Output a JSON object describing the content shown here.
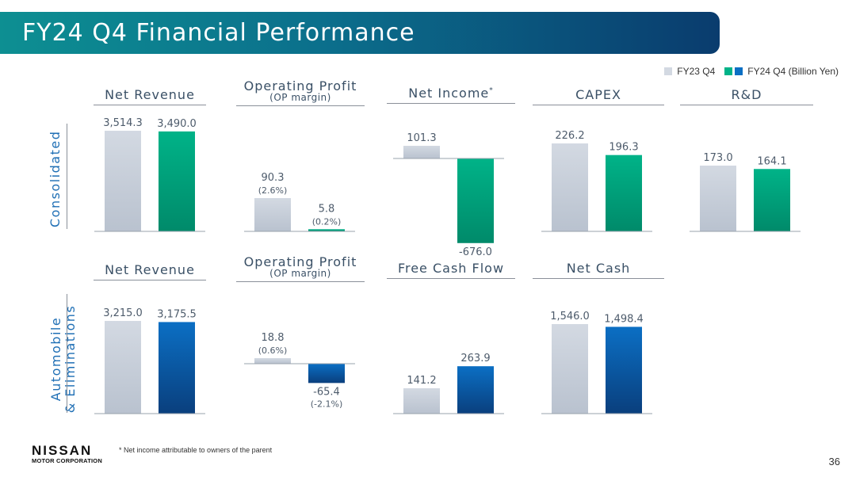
{
  "title": "FY24 Q4 Financial Performance",
  "legend": {
    "fy23_label": "FY23 Q4",
    "fy24_label": "FY24 Q4 (Billion Yen)"
  },
  "colors": {
    "fy23": "#d3d9e2",
    "fy23_bottom": "#b9c2cf",
    "fy24_consolidated": "#00b388",
    "fy24_consolidated_bottom": "#008a6a",
    "fy24_automobile": "#0b6fc4",
    "fy24_automobile_bottom": "#0a3f7d",
    "value_label": "#4d5b6b"
  },
  "row_labels": {
    "consolidated": "Consolidated",
    "automobile_line1": "Automobile",
    "automobile_line2": "& Eliminations"
  },
  "panels": {
    "c_net_revenue": {
      "title": "Net Revenue"
    },
    "c_operating_profit": {
      "title": "Operating Profit",
      "subtitle": "(OP margin)"
    },
    "c_net_income": {
      "title": "Net Income",
      "marker": "*"
    },
    "c_capex": {
      "title": "CAPEX"
    },
    "c_rnd": {
      "title": "R&D"
    },
    "a_net_revenue": {
      "title": "Net Revenue"
    },
    "a_operating_profit": {
      "title": "Operating Profit",
      "subtitle": "(OP margin)"
    },
    "a_fcf": {
      "title": "Free Cash Flow"
    },
    "a_net_cash": {
      "title": "Net Cash"
    }
  },
  "footnote": "* Net income attributable to owners of the parent",
  "page_number": "36",
  "logo": {
    "line1": "NISSAN",
    "line2": "MOTOR CORPORATION"
  },
  "chart_data": [
    {
      "type": "bar",
      "row": "Consolidated",
      "title": "Net Revenue",
      "categories": [
        "FY23 Q4",
        "FY24 Q4"
      ],
      "values": [
        3514.3,
        3490.0
      ],
      "labels": [
        "3,514.3",
        "3,490.0"
      ]
    },
    {
      "type": "bar",
      "row": "Consolidated",
      "title": "Operating Profit",
      "subtitle": "(OP margin)",
      "categories": [
        "FY23 Q4",
        "FY24 Q4"
      ],
      "values": [
        90.3,
        5.8
      ],
      "labels": [
        "90.3",
        "5.8"
      ],
      "margins": [
        "(2.6%)",
        "(0.2%)"
      ]
    },
    {
      "type": "bar",
      "row": "Consolidated",
      "title": "Net Income*",
      "categories": [
        "FY23 Q4",
        "FY24 Q4"
      ],
      "values": [
        101.3,
        -676.0
      ],
      "labels": [
        "101.3",
        "-676.0"
      ]
    },
    {
      "type": "bar",
      "row": "Consolidated",
      "title": "CAPEX",
      "categories": [
        "FY23 Q4",
        "FY24 Q4"
      ],
      "values": [
        226.2,
        196.3
      ],
      "labels": [
        "226.2",
        "196.3"
      ]
    },
    {
      "type": "bar",
      "row": "Consolidated",
      "title": "R&D",
      "categories": [
        "FY23 Q4",
        "FY24 Q4"
      ],
      "values": [
        173.0,
        164.1
      ],
      "labels": [
        "173.0",
        "164.1"
      ]
    },
    {
      "type": "bar",
      "row": "Automobile & Eliminations",
      "title": "Net Revenue",
      "categories": [
        "FY23 Q4",
        "FY24 Q4"
      ],
      "values": [
        3215.0,
        3175.5
      ],
      "labels": [
        "3,215.0",
        "3,175.5"
      ]
    },
    {
      "type": "bar",
      "row": "Automobile & Eliminations",
      "title": "Operating Profit",
      "subtitle": "(OP margin)",
      "categories": [
        "FY23 Q4",
        "FY24 Q4"
      ],
      "values": [
        18.8,
        -65.4
      ],
      "labels": [
        "18.8",
        "-65.4"
      ],
      "margins": [
        "(0.6%)",
        "(-2.1%)"
      ]
    },
    {
      "type": "bar",
      "row": "Automobile & Eliminations",
      "title": "Free Cash Flow",
      "categories": [
        "FY23 Q4",
        "FY24 Q4"
      ],
      "values": [
        141.2,
        263.9
      ],
      "labels": [
        "141.2",
        "263.9"
      ]
    },
    {
      "type": "bar",
      "row": "Automobile & Eliminations",
      "title": "Net Cash",
      "categories": [
        "FY23 Q4",
        "FY24 Q4"
      ],
      "values": [
        1546.0,
        1498.4
      ],
      "labels": [
        "1,546.0",
        "1,498.4"
      ]
    }
  ]
}
